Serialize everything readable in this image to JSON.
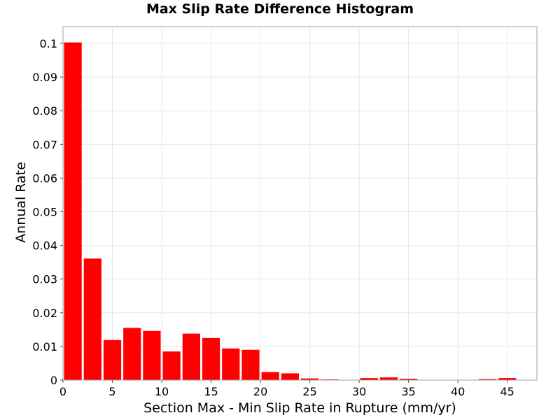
{
  "chart_data": {
    "type": "bar",
    "title": "Max Slip Rate Difference Histogram",
    "xlabel": "Section Max - Min Slip Rate in Rupture (mm/yr)",
    "ylabel": "Annual Rate",
    "xlim": [
      0,
      48
    ],
    "ylim": [
      0,
      0.105
    ],
    "grid": true,
    "legend": "none",
    "bar_color": "#ff0000",
    "bin_width": 2,
    "x_ticks": [
      0,
      5,
      10,
      15,
      20,
      25,
      30,
      35,
      40,
      45
    ],
    "y_ticks": [
      0,
      0.01,
      0.02,
      0.03,
      0.04,
      0.05,
      0.06,
      0.07,
      0.08,
      0.09,
      0.1
    ],
    "x_tick_labels": [
      "0",
      "5",
      "10",
      "15",
      "20",
      "25",
      "30",
      "35",
      "40",
      "45"
    ],
    "y_tick_labels": [
      "0",
      "0.01",
      "0.02",
      "0.03",
      "0.04",
      "0.05",
      "0.06",
      "0.07",
      "0.08",
      "0.09",
      "0.1"
    ],
    "x": [
      1,
      3,
      5,
      7,
      9,
      11,
      13,
      15,
      17,
      19,
      21,
      23,
      25,
      27,
      29,
      31,
      33,
      35,
      37,
      39,
      41,
      43,
      45
    ],
    "values": [
      0.1003,
      0.0361,
      0.0119,
      0.0155,
      0.0146,
      0.0085,
      0.0138,
      0.0125,
      0.0094,
      0.009,
      0.0024,
      0.002,
      0.0005,
      0.0002,
      0.0001,
      0.0006,
      0.0008,
      0.0004,
      0.0001,
      0.0001,
      0.0001,
      0.0003,
      0.0006
    ]
  }
}
